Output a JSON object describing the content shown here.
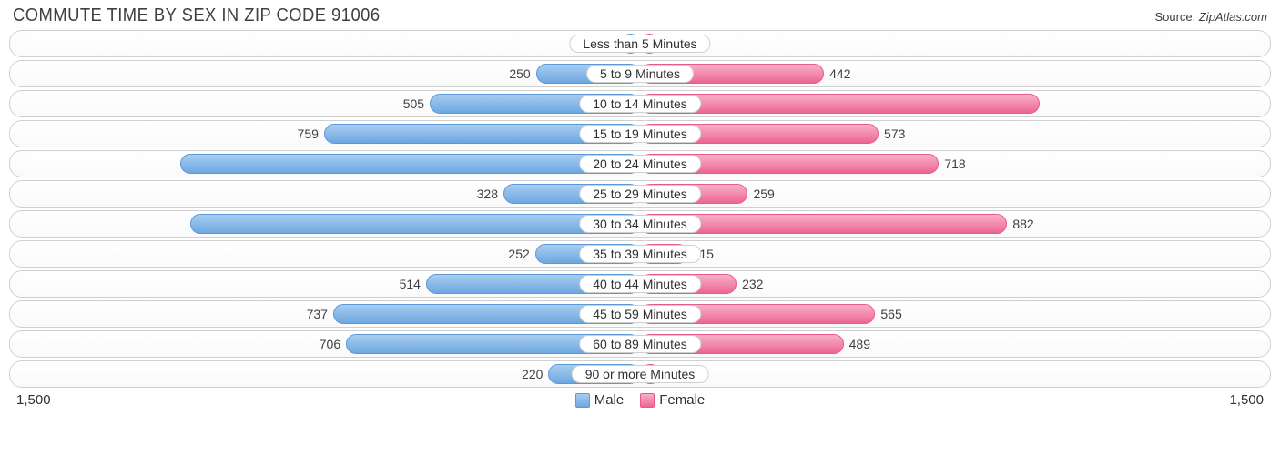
{
  "title": "COMMUTE TIME BY SEX IN ZIP CODE 91006",
  "source_prefix": "Source: ",
  "source_site": "ZipAtlas.com",
  "chart": {
    "type": "diverging-bar",
    "axis_max": 1500,
    "axis_label_left": "1,500",
    "axis_label_right": "1,500",
    "male_color": "#6da7e0",
    "male_color_light": "#a8cdf0",
    "male_border": "#5a98d6",
    "female_color": "#ed6594",
    "female_color_light": "#f8b0c8",
    "female_border": "#e85a8a",
    "row_border": "#d0d0d0",
    "background": "#ffffff",
    "font": "Arial",
    "label_fontsize": 14,
    "title_fontsize": 20,
    "inside_label_threshold": 900,
    "categories": [
      {
        "label": "Less than 5 Minutes",
        "male": 45,
        "male_text": "45",
        "female": 47,
        "female_text": "47"
      },
      {
        "label": "5 to 9 Minutes",
        "male": 250,
        "male_text": "250",
        "female": 442,
        "female_text": "442"
      },
      {
        "label": "10 to 14 Minutes",
        "male": 505,
        "male_text": "505",
        "female": 959,
        "female_text": "959"
      },
      {
        "label": "15 to 19 Minutes",
        "male": 759,
        "male_text": "759",
        "female": 573,
        "female_text": "573"
      },
      {
        "label": "20 to 24 Minutes",
        "male": 1104,
        "male_text": "1,104",
        "female": 718,
        "female_text": "718"
      },
      {
        "label": "25 to 29 Minutes",
        "male": 328,
        "male_text": "328",
        "female": 259,
        "female_text": "259"
      },
      {
        "label": "30 to 34 Minutes",
        "male": 1080,
        "male_text": "1,080",
        "female": 882,
        "female_text": "882"
      },
      {
        "label": "35 to 39 Minutes",
        "male": 252,
        "male_text": "252",
        "female": 115,
        "female_text": "115"
      },
      {
        "label": "40 to 44 Minutes",
        "male": 514,
        "male_text": "514",
        "female": 232,
        "female_text": "232"
      },
      {
        "label": "45 to 59 Minutes",
        "male": 737,
        "male_text": "737",
        "female": 565,
        "female_text": "565"
      },
      {
        "label": "60 to 89 Minutes",
        "male": 706,
        "male_text": "706",
        "female": 489,
        "female_text": "489"
      },
      {
        "label": "90 or more Minutes",
        "male": 220,
        "male_text": "220",
        "female": 50,
        "female_text": "50"
      }
    ]
  },
  "legend": {
    "male": "Male",
    "female": "Female"
  }
}
